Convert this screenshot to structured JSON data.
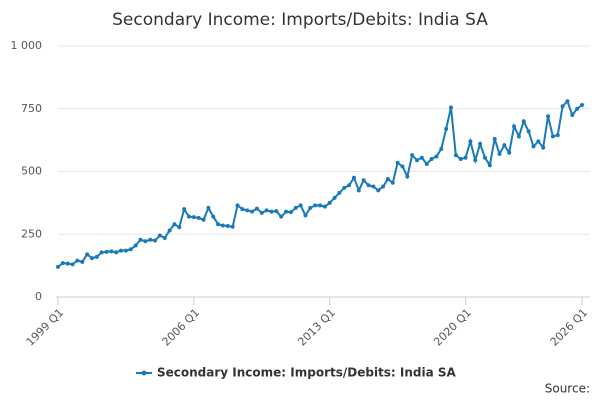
{
  "chart_data": {
    "type": "line",
    "title": "Secondary Income: Imports/Debits: India SA",
    "source": "Source:",
    "categories": [
      "1999 Q1",
      null,
      null,
      null,
      null,
      null,
      null,
      null,
      null,
      null,
      null,
      null,
      null,
      null,
      null,
      null,
      null,
      null,
      null,
      null,
      null,
      null,
      null,
      null,
      null,
      null,
      null,
      null,
      "2006 Q1",
      null,
      null,
      null,
      null,
      null,
      null,
      null,
      null,
      null,
      null,
      null,
      null,
      null,
      null,
      null,
      null,
      null,
      null,
      null,
      null,
      null,
      null,
      null,
      null,
      null,
      null,
      null,
      "2013 Q1",
      null,
      null,
      null,
      null,
      null,
      null,
      null,
      null,
      null,
      null,
      null,
      null,
      null,
      null,
      null,
      null,
      null,
      null,
      null,
      null,
      null,
      null,
      null,
      null,
      null,
      null,
      null,
      "2020 Q1",
      null,
      null,
      null,
      null,
      null,
      null,
      null,
      null,
      null,
      null,
      null,
      null,
      null,
      null,
      null,
      null,
      null,
      null,
      null,
      null,
      null,
      null,
      null,
      "2026 Q1"
    ],
    "series": [
      {
        "name": "Secondary Income: Imports/Debits: India SA",
        "color": "#1a7ab8",
        "values": [
          120,
          135,
          133,
          130,
          145,
          140,
          170,
          155,
          160,
          178,
          180,
          182,
          178,
          185,
          185,
          190,
          205,
          228,
          222,
          228,
          225,
          245,
          235,
          265,
          290,
          278,
          350,
          320,
          318,
          315,
          308,
          355,
          320,
          290,
          285,
          283,
          280,
          365,
          350,
          345,
          340,
          352,
          335,
          345,
          340,
          342,
          320,
          340,
          338,
          355,
          365,
          325,
          355,
          365,
          365,
          360,
          375,
          395,
          415,
          435,
          445,
          475,
          425,
          465,
          445,
          440,
          425,
          440,
          470,
          455,
          535,
          520,
          480,
          565,
          545,
          555,
          530,
          550,
          560,
          590,
          670,
          755,
          565,
          550,
          555,
          620,
          545,
          610,
          555,
          525,
          630,
          570,
          605,
          575,
          680,
          640,
          700,
          660,
          600,
          620,
          595,
          720,
          640,
          645,
          760,
          780,
          725,
          750,
          765
        ]
      }
    ],
    "ylim": [
      0,
      1000
    ],
    "yticks": [
      0,
      250,
      500,
      750,
      {
        "value": 1000,
        "label": "1 000"
      }
    ],
    "grid": true
  }
}
